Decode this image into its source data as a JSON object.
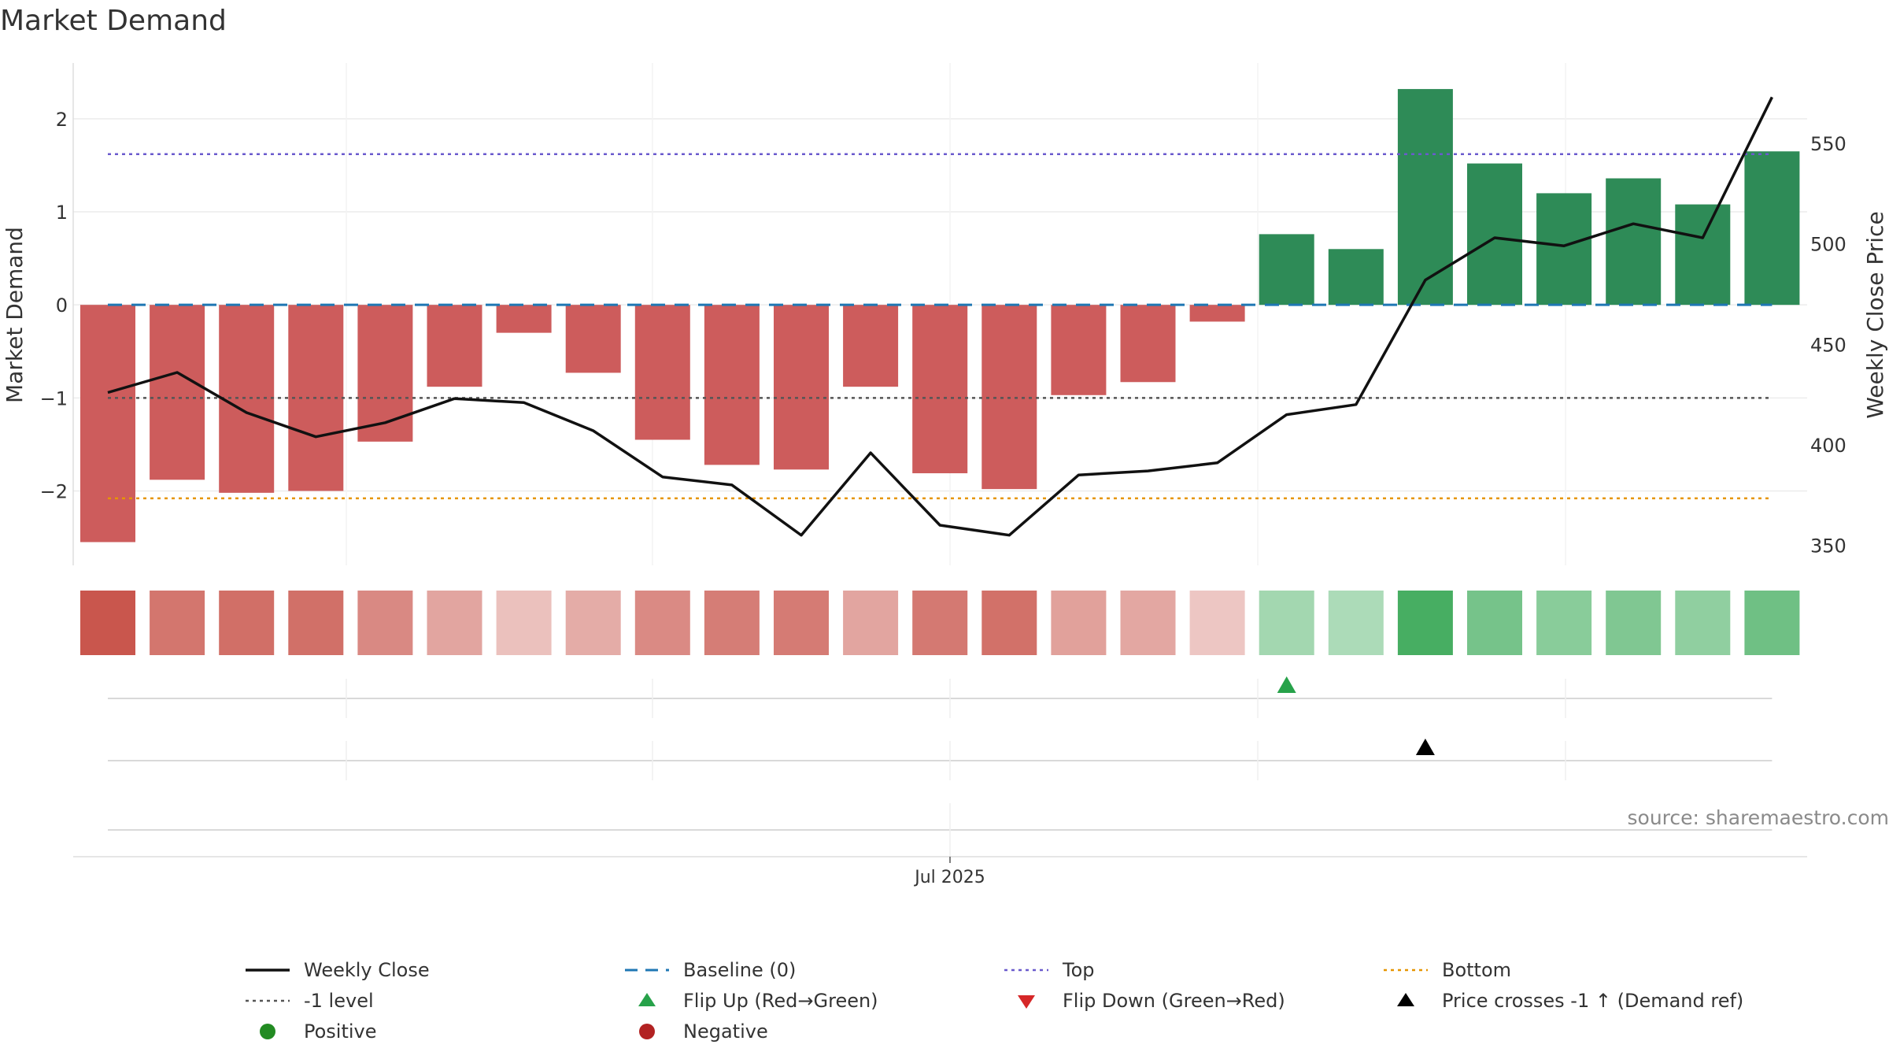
{
  "chart_data": {
    "type": "bar",
    "title": "Market Demand",
    "ylabel": "Market Demand",
    "y2label": "Weekly Close Price",
    "ylim": [
      -2.8,
      2.6
    ],
    "y2lim": [
      340,
      590
    ],
    "yticks": [
      -2,
      -1,
      0,
      1,
      2
    ],
    "y2ticks": [
      350,
      400,
      450,
      500,
      550
    ],
    "xlabel": "",
    "xtick_label": "Jul 2025",
    "xtick_index": 12,
    "grid": true,
    "legend_position": "bottom",
    "values": [
      -2.55,
      -1.88,
      -2.02,
      -2.0,
      -1.47,
      -0.88,
      -0.3,
      -0.73,
      -1.45,
      -1.72,
      -1.77,
      -0.88,
      -1.81,
      -1.98,
      -0.97,
      -0.83,
      -0.18,
      0.76,
      0.6,
      2.32,
      1.52,
      1.2,
      1.36,
      1.08,
      1.65
    ],
    "weekly_close": [
      426,
      436,
      416,
      404,
      411,
      423,
      421,
      407,
      384,
      380,
      355,
      396,
      360,
      355,
      385,
      387,
      391,
      415,
      420,
      482,
      503,
      499,
      510,
      503,
      573
    ],
    "reference_lines": {
      "baseline": 0,
      "top": 1.62,
      "bottom": -2.08,
      "minus_one": -1
    },
    "flip_up_index": 17,
    "price_cross_index": 19,
    "colors": {
      "positive_bar": "#2e8b57",
      "negative_bar": "#cd5c5c",
      "weekly_close": "#111111",
      "baseline": "#1f77b4",
      "top": "#6a5acd",
      "bottom": "#e69500",
      "minus_one": "#555555",
      "flip_up": "#27a24a",
      "flip_down": "#d62728",
      "price_cross": "#000000",
      "positive_dot": "#228b22",
      "negative_dot": "#b22222"
    }
  },
  "legend": [
    {
      "label": "Weekly Close",
      "symbol": "solid-line",
      "color": "#111111"
    },
    {
      "label": "Baseline (0)",
      "symbol": "dashed-line",
      "color": "#1f77b4"
    },
    {
      "label": "Top",
      "symbol": "dotted-line",
      "color": "#6a5acd"
    },
    {
      "label": "Bottom",
      "symbol": "dotted-line",
      "color": "#e69500"
    },
    {
      "label": "-1 level",
      "symbol": "dotted-line",
      "color": "#555555"
    },
    {
      "label": "Flip Up (Red→Green)",
      "symbol": "triangle-up",
      "color": "#27a24a"
    },
    {
      "label": "Flip Down (Green→Red)",
      "symbol": "triangle-down",
      "color": "#d62728"
    },
    {
      "label": "Price crosses -1 ↑ (Demand ref)",
      "symbol": "triangle-up",
      "color": "#000000"
    },
    {
      "label": "Positive",
      "symbol": "dot",
      "color": "#228b22"
    },
    {
      "label": "Negative",
      "symbol": "dot",
      "color": "#b22222"
    }
  ],
  "source": "source: sharemaestro.com"
}
